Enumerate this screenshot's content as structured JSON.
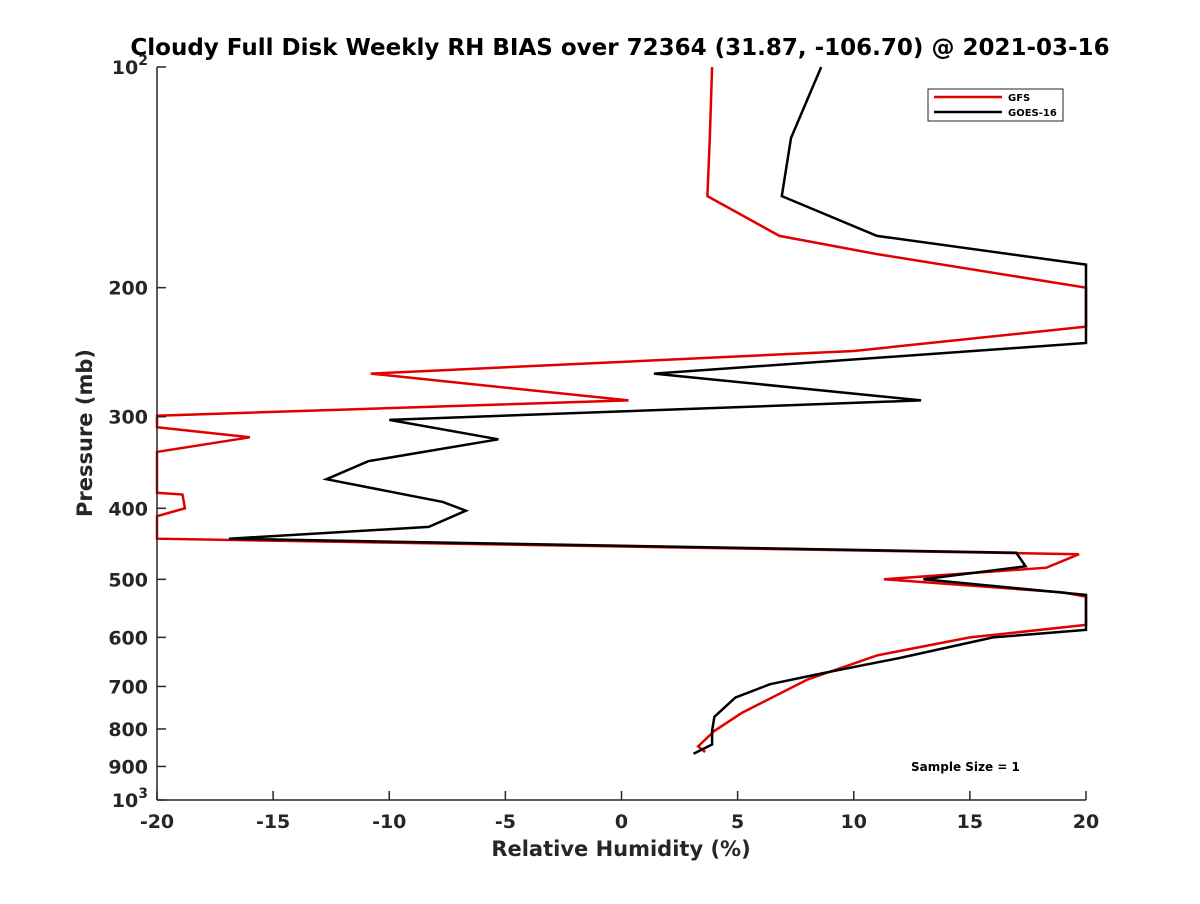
{
  "chart_data": {
    "type": "line",
    "title": "Cloudy Full Disk Weekly RH BIAS over 72364 (31.87, -106.70) @ 2021-03-16",
    "xlabel": "Relative Humidity (%)",
    "ylabel": "Pressure (mb)",
    "xlim": [
      -20,
      20
    ],
    "ylim": [
      100,
      1000
    ],
    "yscale": "log",
    "y_reversed": true,
    "grid": false,
    "legend_position": "top-right",
    "x_ticks": [
      "-20",
      "-15",
      "-10",
      "-5",
      "0",
      "5",
      "10",
      "15",
      "20"
    ],
    "y_ticks": [
      {
        "value": 100,
        "base": "10",
        "exp": "2"
      },
      {
        "value": 200,
        "label": "200"
      },
      {
        "value": 300,
        "label": "300"
      },
      {
        "value": 400,
        "label": "400"
      },
      {
        "value": 500,
        "label": "500"
      },
      {
        "value": 600,
        "label": "600"
      },
      {
        "value": 700,
        "label": "700"
      },
      {
        "value": 800,
        "label": "800"
      },
      {
        "value": 900,
        "label": "900"
      },
      {
        "value": 1000,
        "base": "10",
        "exp": "3"
      }
    ],
    "annotation": "Sample Size = 1",
    "series": [
      {
        "name": "GFS",
        "color": "#e00000",
        "points": [
          [
            3.9,
            100
          ],
          [
            3.8,
            125
          ],
          [
            3.7,
            150
          ],
          [
            6.8,
            170
          ],
          [
            11,
            180
          ],
          [
            20,
            200
          ],
          [
            20,
            226
          ],
          [
            10,
            244
          ],
          [
            -10.8,
            262
          ],
          [
            0.3,
            285
          ],
          [
            -20,
            299
          ],
          [
            -20,
            310
          ],
          [
            -16,
            320
          ],
          [
            -20,
            335
          ],
          [
            -20,
            381
          ],
          [
            -18.9,
            383
          ],
          [
            -18.8,
            400
          ],
          [
            -20,
            410
          ],
          [
            -20,
            440
          ],
          [
            0,
            451
          ],
          [
            19.7,
            462
          ],
          [
            18.3,
            482
          ],
          [
            11.3,
            500
          ],
          [
            19,
            521
          ],
          [
            20,
            528
          ],
          [
            20,
            577
          ],
          [
            15,
            600
          ],
          [
            11,
            635
          ],
          [
            8,
            685
          ],
          [
            5.2,
            760
          ],
          [
            4,
            805
          ],
          [
            3.3,
            845
          ],
          [
            3.6,
            860
          ]
        ]
      },
      {
        "name": "GOES-16",
        "color": "#000000",
        "points": [
          [
            8.6,
            100
          ],
          [
            7.3,
            125
          ],
          [
            6.9,
            150
          ],
          [
            11,
            170
          ],
          [
            20,
            186
          ],
          [
            20,
            238
          ],
          [
            1.4,
            262
          ],
          [
            12.9,
            285
          ],
          [
            -10,
            303
          ],
          [
            -5.3,
            322
          ],
          [
            -10.9,
            345
          ],
          [
            -12.7,
            365
          ],
          [
            -7.7,
            392
          ],
          [
            -6.7,
            403
          ],
          [
            -8.3,
            424
          ],
          [
            -16.9,
            440
          ],
          [
            0,
            450
          ],
          [
            17,
            460
          ],
          [
            17.4,
            480
          ],
          [
            13,
            500
          ],
          [
            20,
            525
          ],
          [
            20,
            586
          ],
          [
            16,
            600
          ],
          [
            12,
            640
          ],
          [
            9,
            668
          ],
          [
            6.4,
            695
          ],
          [
            4.9,
            725
          ],
          [
            4,
            770
          ],
          [
            3.9,
            805
          ],
          [
            3.9,
            840
          ],
          [
            3.1,
            865
          ]
        ]
      }
    ]
  }
}
